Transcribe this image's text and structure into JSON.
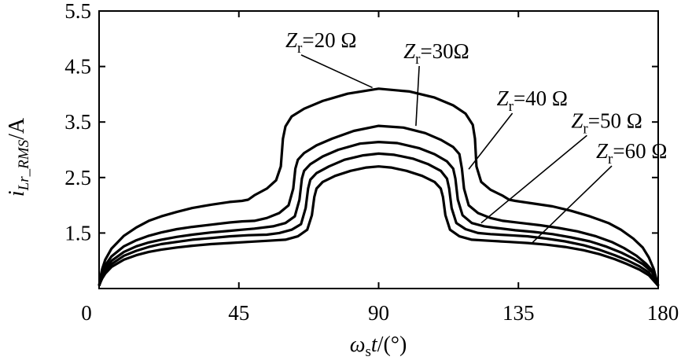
{
  "chart_data": {
    "type": "line",
    "xlabel": {
      "omega": "ω",
      "sub": "s",
      "t": "t",
      "unit": "/(°)"
    },
    "ylabel": {
      "i": "i",
      "sub": "Lr_RMS",
      "unit": "/A"
    },
    "xlim": [
      0,
      180
    ],
    "ylim": [
      0.5,
      5.5
    ],
    "xticks": [
      "0",
      "45",
      "90",
      "135",
      "180"
    ],
    "yticks": [
      "1.5",
      "2.5",
      "3.5",
      "4.5",
      "5.5"
    ],
    "xtick_values": [
      0,
      45,
      90,
      135,
      180
    ],
    "ytick_values": [
      1.5,
      2.5,
      3.5,
      4.5,
      5.5
    ],
    "grid": false,
    "legend": "none",
    "series": [
      {
        "label": {
          "z": "Z",
          "sub": "r",
          "text": "=20 Ω"
        },
        "points": [
          [
            0,
            0.55
          ],
          [
            0.5,
            0.72
          ],
          [
            1,
            0.85
          ],
          [
            2,
            1.02
          ],
          [
            4,
            1.22
          ],
          [
            8,
            1.45
          ],
          [
            12,
            1.6
          ],
          [
            16,
            1.72
          ],
          [
            20,
            1.8
          ],
          [
            25,
            1.88
          ],
          [
            30,
            1.95
          ],
          [
            36,
            2.01
          ],
          [
            42,
            2.06
          ],
          [
            46,
            2.08
          ],
          [
            48,
            2.1
          ],
          [
            50,
            2.18
          ],
          [
            54,
            2.3
          ],
          [
            57,
            2.45
          ],
          [
            58.5,
            2.7
          ],
          [
            59.2,
            3.2
          ],
          [
            60,
            3.42
          ],
          [
            62,
            3.6
          ],
          [
            66,
            3.74
          ],
          [
            72,
            3.88
          ],
          [
            80,
            4.01
          ],
          [
            90,
            4.1
          ],
          [
            100,
            4.05
          ],
          [
            108,
            3.94
          ],
          [
            114,
            3.8
          ],
          [
            118,
            3.65
          ],
          [
            120.3,
            3.45
          ],
          [
            121,
            3.2
          ],
          [
            121.5,
            2.7
          ],
          [
            123,
            2.42
          ],
          [
            126,
            2.28
          ],
          [
            130,
            2.17
          ],
          [
            132,
            2.1
          ],
          [
            134,
            2.08
          ],
          [
            140,
            2.03
          ],
          [
            146,
            1.98
          ],
          [
            152,
            1.9
          ],
          [
            158,
            1.8
          ],
          [
            164,
            1.68
          ],
          [
            168,
            1.56
          ],
          [
            172,
            1.4
          ],
          [
            175,
            1.24
          ],
          [
            177,
            1.06
          ],
          [
            178.5,
            0.86
          ],
          [
            180,
            0.55
          ]
        ]
      },
      {
        "label": {
          "z": "Z",
          "sub": "r",
          "text": "=30Ω"
        },
        "points": [
          [
            0,
            0.55
          ],
          [
            0.5,
            0.68
          ],
          [
            1,
            0.78
          ],
          [
            2,
            0.92
          ],
          [
            4,
            1.08
          ],
          [
            8,
            1.26
          ],
          [
            12,
            1.37
          ],
          [
            16,
            1.45
          ],
          [
            20,
            1.51
          ],
          [
            25,
            1.57
          ],
          [
            30,
            1.61
          ],
          [
            36,
            1.65
          ],
          [
            42,
            1.69
          ],
          [
            46,
            1.71
          ],
          [
            50,
            1.72
          ],
          [
            54,
            1.77
          ],
          [
            58,
            1.86
          ],
          [
            61,
            2.0
          ],
          [
            62.5,
            2.3
          ],
          [
            63.2,
            2.66
          ],
          [
            64,
            2.82
          ],
          [
            66,
            2.94
          ],
          [
            70,
            3.08
          ],
          [
            75,
            3.2
          ],
          [
            82,
            3.34
          ],
          [
            90,
            3.43
          ],
          [
            98,
            3.4
          ],
          [
            105,
            3.3
          ],
          [
            110,
            3.18
          ],
          [
            114,
            3.05
          ],
          [
            116,
            2.92
          ],
          [
            116.8,
            2.66
          ],
          [
            117.5,
            2.3
          ],
          [
            119,
            2.0
          ],
          [
            122,
            1.86
          ],
          [
            126,
            1.77
          ],
          [
            130,
            1.72
          ],
          [
            136,
            1.68
          ],
          [
            142,
            1.64
          ],
          [
            148,
            1.59
          ],
          [
            154,
            1.53
          ],
          [
            160,
            1.44
          ],
          [
            165,
            1.34
          ],
          [
            169,
            1.23
          ],
          [
            173,
            1.09
          ],
          [
            176,
            0.95
          ],
          [
            178,
            0.83
          ],
          [
            180,
            0.55
          ]
        ]
      },
      {
        "label": {
          "z": "Z",
          "sub": "r",
          "text": "=40 Ω"
        },
        "points": [
          [
            0,
            0.55
          ],
          [
            0.5,
            0.66
          ],
          [
            1,
            0.74
          ],
          [
            2,
            0.86
          ],
          [
            4,
            1.0
          ],
          [
            8,
            1.16
          ],
          [
            12,
            1.26
          ],
          [
            16,
            1.33
          ],
          [
            20,
            1.38
          ],
          [
            25,
            1.43
          ],
          [
            30,
            1.47
          ],
          [
            36,
            1.51
          ],
          [
            42,
            1.54
          ],
          [
            46,
            1.56
          ],
          [
            50,
            1.58
          ],
          [
            56,
            1.62
          ],
          [
            60,
            1.68
          ],
          [
            63,
            1.8
          ],
          [
            64.5,
            2.1
          ],
          [
            65.3,
            2.48
          ],
          [
            66,
            2.62
          ],
          [
            68,
            2.74
          ],
          [
            72,
            2.88
          ],
          [
            77,
            3.0
          ],
          [
            84,
            3.11
          ],
          [
            90,
            3.14
          ],
          [
            96,
            3.12
          ],
          [
            103,
            3.03
          ],
          [
            108,
            2.92
          ],
          [
            112,
            2.79
          ],
          [
            114,
            2.66
          ],
          [
            114.7,
            2.48
          ],
          [
            115.5,
            2.1
          ],
          [
            117,
            1.82
          ],
          [
            120,
            1.68
          ],
          [
            124,
            1.62
          ],
          [
            128,
            1.59
          ],
          [
            134,
            1.55
          ],
          [
            140,
            1.52
          ],
          [
            146,
            1.48
          ],
          [
            152,
            1.42
          ],
          [
            158,
            1.35
          ],
          [
            163,
            1.26
          ],
          [
            168,
            1.15
          ],
          [
            172,
            1.04
          ],
          [
            175,
            0.94
          ],
          [
            178,
            0.8
          ],
          [
            180,
            0.55
          ]
        ]
      },
      {
        "label": {
          "z": "Z",
          "sub": "r",
          "text": "=50 Ω"
        },
        "points": [
          [
            0,
            0.55
          ],
          [
            0.5,
            0.64
          ],
          [
            1,
            0.71
          ],
          [
            2,
            0.81
          ],
          [
            4,
            0.94
          ],
          [
            8,
            1.09
          ],
          [
            12,
            1.18
          ],
          [
            16,
            1.25
          ],
          [
            20,
            1.3
          ],
          [
            25,
            1.34
          ],
          [
            30,
            1.38
          ],
          [
            36,
            1.41
          ],
          [
            42,
            1.44
          ],
          [
            48,
            1.46
          ],
          [
            54,
            1.47
          ],
          [
            58,
            1.5
          ],
          [
            62,
            1.56
          ],
          [
            65,
            1.66
          ],
          [
            66.5,
            1.95
          ],
          [
            67.3,
            2.3
          ],
          [
            68,
            2.46
          ],
          [
            70,
            2.58
          ],
          [
            74,
            2.7
          ],
          [
            79,
            2.82
          ],
          [
            85,
            2.9
          ],
          [
            90,
            2.93
          ],
          [
            95,
            2.91
          ],
          [
            101,
            2.84
          ],
          [
            106,
            2.74
          ],
          [
            110,
            2.62
          ],
          [
            112,
            2.48
          ],
          [
            112.7,
            2.3
          ],
          [
            113.5,
            1.95
          ],
          [
            115,
            1.68
          ],
          [
            118,
            1.57
          ],
          [
            122,
            1.5
          ],
          [
            126,
            1.48
          ],
          [
            132,
            1.46
          ],
          [
            138,
            1.44
          ],
          [
            144,
            1.4
          ],
          [
            150,
            1.35
          ],
          [
            156,
            1.28
          ],
          [
            161,
            1.2
          ],
          [
            166,
            1.1
          ],
          [
            170,
            1.01
          ],
          [
            174,
            0.9
          ],
          [
            177,
            0.79
          ],
          [
            180,
            0.55
          ]
        ]
      },
      {
        "label": {
          "z": "Z",
          "sub": "r",
          "text": "=60 Ω"
        },
        "points": [
          [
            0,
            0.55
          ],
          [
            0.5,
            0.62
          ],
          [
            1,
            0.68
          ],
          [
            2,
            0.77
          ],
          [
            4,
            0.89
          ],
          [
            8,
            1.02
          ],
          [
            12,
            1.1
          ],
          [
            16,
            1.16
          ],
          [
            20,
            1.2
          ],
          [
            25,
            1.24
          ],
          [
            30,
            1.27
          ],
          [
            36,
            1.3
          ],
          [
            42,
            1.32
          ],
          [
            48,
            1.34
          ],
          [
            54,
            1.36
          ],
          [
            60,
            1.38
          ],
          [
            64,
            1.44
          ],
          [
            67,
            1.56
          ],
          [
            68.5,
            1.82
          ],
          [
            69.3,
            2.15
          ],
          [
            70,
            2.3
          ],
          [
            72,
            2.42
          ],
          [
            76,
            2.53
          ],
          [
            81,
            2.62
          ],
          [
            86,
            2.68
          ],
          [
            90,
            2.7
          ],
          [
            94,
            2.68
          ],
          [
            99,
            2.62
          ],
          [
            104,
            2.53
          ],
          [
            108,
            2.42
          ],
          [
            110,
            2.3
          ],
          [
            110.7,
            2.15
          ],
          [
            111.5,
            1.82
          ],
          [
            113,
            1.56
          ],
          [
            116,
            1.44
          ],
          [
            120,
            1.38
          ],
          [
            126,
            1.36
          ],
          [
            132,
            1.34
          ],
          [
            138,
            1.32
          ],
          [
            144,
            1.29
          ],
          [
            150,
            1.25
          ],
          [
            156,
            1.19
          ],
          [
            161,
            1.12
          ],
          [
            166,
            1.03
          ],
          [
            170,
            0.94
          ],
          [
            174,
            0.84
          ],
          [
            177,
            0.74
          ],
          [
            180,
            0.55
          ]
        ]
      }
    ],
    "annotations": [
      {
        "series": 0,
        "at": [
          60,
          4.85
        ],
        "from": [
          88,
          4.12
        ]
      },
      {
        "series": 1,
        "at": [
          98,
          4.65
        ],
        "from": [
          102,
          3.43
        ]
      },
      {
        "series": 2,
        "at": [
          128,
          3.8
        ],
        "from": [
          119,
          2.65
        ]
      },
      {
        "series": 3,
        "at": [
          152,
          3.4
        ],
        "from": [
          123,
          1.68
        ]
      },
      {
        "series": 4,
        "at": [
          160,
          2.85
        ],
        "from": [
          139,
          1.3
        ]
      }
    ]
  }
}
